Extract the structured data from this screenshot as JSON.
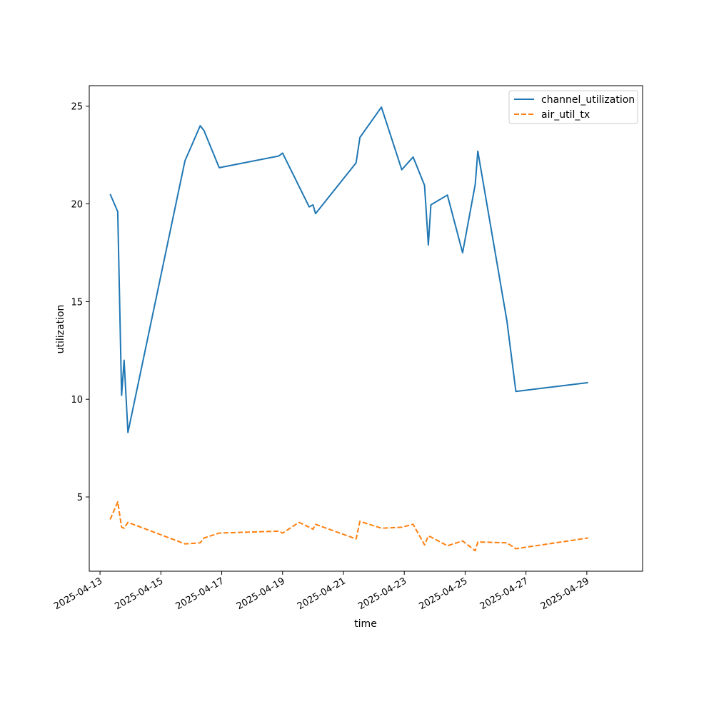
{
  "chart_data": {
    "type": "line",
    "title": "",
    "xlabel": "time",
    "ylabel": "utilization",
    "x_ticks": [
      "2025-04-13",
      "2025-04-15",
      "2025-04-17",
      "2025-04-19",
      "2025-04-21",
      "2025-04-23",
      "2025-04-25",
      "2025-04-27",
      "2025-04-29"
    ],
    "y_ticks": [
      5,
      10,
      15,
      20,
      25
    ],
    "xlim": [
      "2025-04-12T15:30",
      "2025-04-30T20:00"
    ],
    "ylim": [
      1.2,
      26.05
    ],
    "grid": false,
    "legend_position": "upper right",
    "series": [
      {
        "name": "channel_utilization",
        "color": "#1f77b4",
        "style": "solid",
        "points": [
          [
            "2025-04-13T08:00",
            20.5
          ],
          [
            "2025-04-13T14:00",
            19.6
          ],
          [
            "2025-04-13T17:00",
            10.2
          ],
          [
            "2025-04-13T19:00",
            12.0
          ],
          [
            "2025-04-13T22:00",
            8.3
          ],
          [
            "2025-04-15T19:00",
            22.2
          ],
          [
            "2025-04-16T07:00",
            24.0
          ],
          [
            "2025-04-16T10:00",
            23.75
          ],
          [
            "2025-04-16T22:00",
            21.85
          ],
          [
            "2025-04-18T21:00",
            22.45
          ],
          [
            "2025-04-19T00:00",
            22.6
          ],
          [
            "2025-04-19T13:00",
            20.9
          ],
          [
            "2025-04-19T21:00",
            19.85
          ],
          [
            "2025-04-20T00:00",
            19.95
          ],
          [
            "2025-04-20T02:00",
            19.5
          ],
          [
            "2025-04-21T10:00",
            22.1
          ],
          [
            "2025-04-21T13:00",
            23.4
          ],
          [
            "2025-04-22T06:00",
            24.95
          ],
          [
            "2025-04-22T22:00",
            21.75
          ],
          [
            "2025-04-23T07:00",
            22.4
          ],
          [
            "2025-04-23T16:00",
            20.95
          ],
          [
            "2025-04-23T19:00",
            17.9
          ],
          [
            "2025-04-23T21:00",
            19.95
          ],
          [
            "2025-04-24T10:00",
            20.45
          ],
          [
            "2025-04-24T22:00",
            17.5
          ],
          [
            "2025-04-25T08:00",
            21.0
          ],
          [
            "2025-04-25T10:00",
            22.7
          ],
          [
            "2025-04-26T09:00",
            14.0
          ],
          [
            "2025-04-26T16:00",
            10.4
          ],
          [
            "2025-04-29T01:00",
            10.85
          ]
        ]
      },
      {
        "name": "air_util_tx",
        "color": "#ff7f0e",
        "style": "dashed",
        "points": [
          [
            "2025-04-13T08:00",
            3.85
          ],
          [
            "2025-04-13T14:00",
            4.75
          ],
          [
            "2025-04-13T17:00",
            3.45
          ],
          [
            "2025-04-13T19:00",
            3.4
          ],
          [
            "2025-04-13T22:00",
            3.7
          ],
          [
            "2025-04-15T19:00",
            2.6
          ],
          [
            "2025-04-16T07:00",
            2.65
          ],
          [
            "2025-04-16T10:00",
            2.9
          ],
          [
            "2025-04-16T22:00",
            3.15
          ],
          [
            "2025-04-18T21:00",
            3.25
          ],
          [
            "2025-04-19T00:00",
            3.15
          ],
          [
            "2025-04-19T13:00",
            3.7
          ],
          [
            "2025-04-19T21:00",
            3.45
          ],
          [
            "2025-04-20T00:00",
            3.35
          ],
          [
            "2025-04-20T02:00",
            3.6
          ],
          [
            "2025-04-21T10:00",
            2.85
          ],
          [
            "2025-04-21T13:00",
            3.75
          ],
          [
            "2025-04-22T06:00",
            3.4
          ],
          [
            "2025-04-22T22:00",
            3.45
          ],
          [
            "2025-04-23T07:00",
            3.6
          ],
          [
            "2025-04-23T16:00",
            2.55
          ],
          [
            "2025-04-23T19:00",
            3.0
          ],
          [
            "2025-04-23T21:00",
            2.95
          ],
          [
            "2025-04-24T10:00",
            2.5
          ],
          [
            "2025-04-24T22:00",
            2.75
          ],
          [
            "2025-04-25T08:00",
            2.25
          ],
          [
            "2025-04-25T10:00",
            2.7
          ],
          [
            "2025-04-26T09:00",
            2.65
          ],
          [
            "2025-04-26T16:00",
            2.35
          ],
          [
            "2025-04-29T01:00",
            2.9
          ]
        ]
      }
    ]
  }
}
